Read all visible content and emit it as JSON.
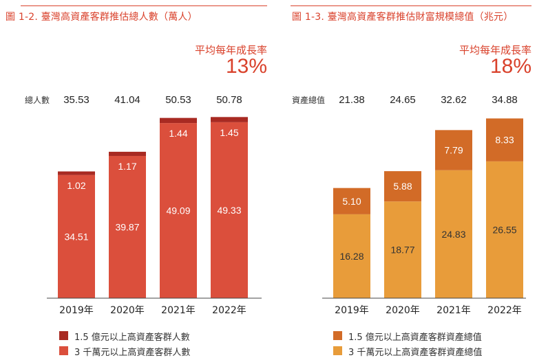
{
  "chart_data": [
    {
      "type": "bar",
      "stacked": true,
      "title": "圖 1-2. 臺灣高資產客群推估總人數（萬人）",
      "cagr_label": "平均每年成長率",
      "cagr_value": "13%",
      "total_label": "總人數",
      "categories": [
        "2019年",
        "2020年",
        "2021年",
        "2022年"
      ],
      "totals": [
        "35.53",
        "41.04",
        "50.53",
        "50.78"
      ],
      "series": [
        {
          "name": "3 千萬元以上高資產客群人數",
          "color": "#db4f3c",
          "label_color": "#ffffff",
          "values": [
            34.51,
            39.87,
            49.09,
            49.33
          ],
          "labels": [
            "34.51",
            "39.87",
            "49.09",
            "49.33"
          ]
        },
        {
          "name": "1.5 億元以上高資產客群人數",
          "color": "#a82a22",
          "label_color": "#ffffff",
          "values": [
            1.02,
            1.17,
            1.44,
            1.45
          ],
          "labels": [
            "1.02",
            "1.17",
            "1.44",
            "1.45"
          ]
        }
      ],
      "ylim": [
        0,
        52
      ]
    },
    {
      "type": "bar",
      "stacked": true,
      "title": "圖 1-3. 臺灣高資產客群推估財富規模總值（兆元）",
      "cagr_label": "平均每年成長率",
      "cagr_value": "18%",
      "total_label": "資產總值",
      "categories": [
        "2019年",
        "2020年",
        "2021年",
        "2022年"
      ],
      "totals": [
        "21.38",
        "24.65",
        "32.62",
        "34.88"
      ],
      "series": [
        {
          "name": "3 千萬元以上高資產客群資產總值",
          "color": "#e89c3a",
          "label_color": "#333333",
          "values": [
            16.28,
            18.77,
            24.83,
            26.55
          ],
          "labels": [
            "16.28",
            "18.77",
            "24.83",
            "26.55"
          ]
        },
        {
          "name": "1.5 億元以上高資產客群資產總值",
          "color": "#d26b27",
          "label_color": "#ffffff",
          "values": [
            5.1,
            5.88,
            7.79,
            8.33
          ],
          "labels": [
            "5.10",
            "5.88",
            "7.79",
            "8.33"
          ]
        }
      ],
      "ylim": [
        0,
        36
      ]
    }
  ]
}
